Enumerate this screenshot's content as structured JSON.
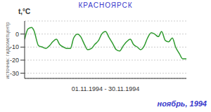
{
  "chart_data": {
    "type": "line",
    "title": "КРАСНОЯРСК",
    "y_label": "t,°C",
    "x_label": "01.11.1994 - 30.11.1994",
    "annotations": [
      "источник: гидрометцентр",
      "ноябрь, 1994"
    ],
    "x": [
      1.0,
      1.65,
      2.3,
      2.7,
      3.6,
      4.3,
      4.9,
      5.6,
      6.2,
      6.9,
      7.5,
      8.2,
      8.8,
      9.5,
      10.1,
      10.8,
      11.4,
      12.1,
      12.7,
      13.4,
      14.0,
      14.7,
      15.3,
      16.0,
      16.7,
      17.3,
      18.0,
      18.6,
      19.3,
      19.9,
      20.6,
      21.2,
      21.9,
      22.5,
      23.2,
      23.8,
      24.5,
      25.1,
      25.8,
      26.4,
      27.1,
      27.7,
      28.4,
      29.0,
      29.7,
      30.3,
      31.0
    ],
    "values": [
      -4,
      4,
      5,
      3,
      -9,
      -10,
      -11,
      -9,
      -6,
      -4,
      -8,
      -10,
      -11,
      -11,
      -3,
      0,
      -2,
      -8,
      -12,
      -11,
      -8,
      -5,
      0,
      2,
      -3,
      -7,
      -12,
      -13,
      -9,
      -6,
      -4,
      -8,
      -10,
      -12,
      -9,
      -3,
      1,
      0,
      -2,
      2,
      -5,
      -6,
      -3,
      -10,
      -15,
      -19,
      -19
    ],
    "color": "#2e9a2e",
    "xlim": [
      1,
      31
    ],
    "ylim": [
      -34,
      10
    ],
    "yticks": [
      0,
      -10,
      -20,
      -30
    ],
    "grid": true,
    "tick_labels": "y"
  }
}
